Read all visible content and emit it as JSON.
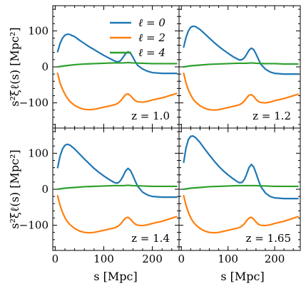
{
  "chart_data": {
    "type": "line",
    "layout": "2x2 grid, shared axes",
    "xlabel": "s [Mpc]",
    "ylabel": "s²ξℓ(s) [Mpc²]",
    "xlim": [
      -5,
      255
    ],
    "ylim": [
      -170,
      170
    ],
    "xticks": [
      0,
      100,
      200
    ],
    "yticks": [
      -100,
      0,
      100
    ],
    "grid": false,
    "legend": {
      "placement": "top-right of first panel",
      "entries": [
        {
          "label": "ℓ = 0",
          "color": "#1f77b4"
        },
        {
          "label": "ℓ = 2",
          "color": "#ff7f0e"
        },
        {
          "label": "ℓ = 4",
          "color": "#2ca02c"
        }
      ]
    },
    "panels": [
      {
        "annotation": "z = 1.0",
        "series": [
          {
            "name": "ℓ = 0",
            "color": "#1f77b4",
            "x": [
              5,
              10,
              15,
              20,
              25,
              30,
              40,
              50,
              60,
              70,
              80,
              90,
              100,
              110,
              120,
              125,
              130,
              135,
              140,
              145,
              150,
              155,
              160,
              165,
              170,
              180,
              190,
              200,
              220,
              250
            ],
            "y": [
              42,
              65,
              80,
              88,
              91,
              90,
              84,
              74,
              65,
              56,
              48,
              40,
              32,
              25,
              18,
              15,
              14,
              18,
              27,
              37,
              42,
              38,
              27,
              14,
              4,
              -6,
              -12,
              -16,
              -18,
              -18
            ]
          },
          {
            "name": "ℓ = 2",
            "color": "#ff7f0e",
            "x": [
              5,
              10,
              15,
              20,
              25,
              30,
              40,
              50,
              60,
              70,
              80,
              90,
              100,
              110,
              120,
              125,
              130,
              135,
              140,
              145,
              150,
              155,
              160,
              165,
              170,
              180,
              190,
              200,
              220,
              250
            ],
            "y": [
              -18,
              -45,
              -62,
              -76,
              -87,
              -96,
              -107,
              -114,
              -118,
              -119,
              -118,
              -115,
              -112,
              -109,
              -106,
              -104,
              -100,
              -94,
              -85,
              -77,
              -75,
              -80,
              -88,
              -94,
              -97,
              -98,
              -96,
              -92,
              -86,
              -74
            ]
          },
          {
            "name": "ℓ = 4",
            "color": "#2ca02c",
            "x": [
              5,
              20,
              40,
              60,
              80,
              100,
              120,
              140,
              150,
              160,
              180,
              200,
              220,
              250
            ],
            "y": [
              0,
              3,
              6,
              8,
              9,
              10,
              11,
              11,
              12,
              11,
              10,
              9,
              9,
              9
            ]
          }
        ]
      },
      {
        "annotation": "z = 1.2",
        "series": [
          {
            "name": "ℓ = 0",
            "color": "#1f77b4",
            "x": [
              5,
              10,
              15,
              20,
              25,
              30,
              40,
              50,
              60,
              70,
              80,
              90,
              100,
              110,
              120,
              125,
              130,
              135,
              140,
              145,
              150,
              155,
              160,
              165,
              170,
              180,
              190,
              200,
              220,
              250
            ],
            "y": [
              55,
              82,
              100,
              110,
              113,
              112,
              104,
              92,
              80,
              68,
              57,
              47,
              38,
              29,
              22,
              19,
              20,
              25,
              35,
              46,
              52,
              48,
              36,
              22,
              8,
              -6,
              -14,
              -18,
              -20,
              -20
            ]
          },
          {
            "name": "ℓ = 2",
            "color": "#ff7f0e",
            "x": [
              5,
              10,
              15,
              20,
              25,
              30,
              40,
              50,
              60,
              70,
              80,
              90,
              100,
              110,
              120,
              125,
              130,
              135,
              140,
              145,
              150,
              155,
              160,
              165,
              170,
              180,
              190,
              200,
              220,
              250
            ],
            "y": [
              -18,
              -45,
              -64,
              -78,
              -89,
              -97,
              -108,
              -115,
              -119,
              -120,
              -119,
              -116,
              -113,
              -110,
              -107,
              -105,
              -101,
              -95,
              -86,
              -79,
              -77,
              -82,
              -90,
              -96,
              -99,
              -100,
              -98,
              -94,
              -88,
              -76
            ]
          },
          {
            "name": "ℓ = 4",
            "color": "#2ca02c",
            "x": [
              5,
              20,
              40,
              60,
              80,
              100,
              120,
              140,
              150,
              160,
              180,
              200,
              220,
              250
            ],
            "y": [
              0,
              3,
              5,
              7,
              8,
              9,
              10,
              10,
              11,
              10,
              9,
              9,
              8,
              8
            ]
          }
        ]
      },
      {
        "annotation": "z = 1.4",
        "series": [
          {
            "name": "ℓ = 0",
            "color": "#1f77b4",
            "x": [
              5,
              10,
              15,
              20,
              25,
              30,
              40,
              50,
              60,
              70,
              80,
              90,
              100,
              110,
              120,
              125,
              130,
              135,
              140,
              145,
              150,
              155,
              160,
              165,
              170,
              180,
              190,
              200,
              220,
              250
            ],
            "y": [
              60,
              92,
              112,
              122,
              125,
              123,
              112,
              98,
              84,
              71,
              58,
              47,
              37,
              28,
              20,
              17,
              18,
              25,
              37,
              51,
              58,
              52,
              38,
              22,
              8,
              -8,
              -16,
              -20,
              -22,
              -22
            ]
          },
          {
            "name": "ℓ = 2",
            "color": "#ff7f0e",
            "x": [
              5,
              10,
              15,
              20,
              25,
              30,
              40,
              50,
              60,
              70,
              80,
              90,
              100,
              110,
              120,
              125,
              130,
              135,
              140,
              145,
              150,
              155,
              160,
              165,
              170,
              180,
              190,
              200,
              220,
              250
            ],
            "y": [
              -18,
              -45,
              -64,
              -79,
              -90,
              -98,
              -109,
              -116,
              -120,
              -121,
              -120,
              -117,
              -114,
              -111,
              -108,
              -106,
              -102,
              -96,
              -87,
              -80,
              -78,
              -83,
              -91,
              -97,
              -100,
              -101,
              -99,
              -95,
              -89,
              -76
            ]
          },
          {
            "name": "ℓ = 4",
            "color": "#2ca02c",
            "x": [
              5,
              20,
              40,
              60,
              80,
              100,
              120,
              140,
              150,
              160,
              180,
              200,
              220,
              250
            ],
            "y": [
              0,
              3,
              5,
              7,
              8,
              9,
              10,
              10,
              11,
              10,
              9,
              8,
              8,
              8
            ]
          }
        ]
      },
      {
        "annotation": "z = 1.65",
        "series": [
          {
            "name": "ℓ = 0",
            "color": "#1f77b4",
            "x": [
              5,
              10,
              15,
              20,
              25,
              30,
              40,
              50,
              60,
              70,
              80,
              90,
              100,
              110,
              120,
              125,
              130,
              135,
              140,
              145,
              150,
              155,
              160,
              165,
              170,
              180,
              190,
              200,
              220,
              250
            ],
            "y": [
              75,
              115,
              138,
              147,
              148,
              144,
              130,
              112,
              95,
              79,
              64,
              51,
              40,
              30,
              21,
              18,
              19,
              27,
              42,
              60,
              69,
              62,
              45,
              26,
              8,
              -10,
              -20,
              -24,
              -26,
              -26
            ]
          },
          {
            "name": "ℓ = 2",
            "color": "#ff7f0e",
            "x": [
              5,
              10,
              15,
              20,
              25,
              30,
              40,
              50,
              60,
              70,
              80,
              90,
              100,
              110,
              120,
              125,
              130,
              135,
              140,
              145,
              150,
              155,
              160,
              165,
              170,
              180,
              190,
              200,
              220,
              250
            ],
            "y": [
              -18,
              -45,
              -64,
              -79,
              -90,
              -98,
              -109,
              -116,
              -120,
              -121,
              -120,
              -117,
              -114,
              -111,
              -108,
              -106,
              -102,
              -96,
              -87,
              -80,
              -78,
              -83,
              -91,
              -97,
              -100,
              -101,
              -99,
              -95,
              -89,
              -76
            ]
          },
          {
            "name": "ℓ = 4",
            "color": "#2ca02c",
            "x": [
              5,
              20,
              40,
              60,
              80,
              100,
              120,
              140,
              150,
              160,
              180,
              200,
              220,
              250
            ],
            "y": [
              0,
              3,
              5,
              7,
              8,
              9,
              10,
              10,
              10,
              10,
              9,
              8,
              8,
              8
            ]
          }
        ]
      }
    ]
  }
}
